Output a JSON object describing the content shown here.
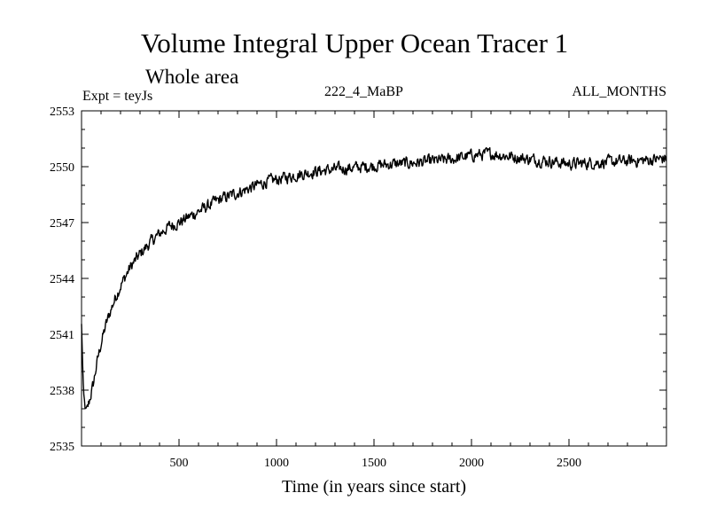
{
  "chart_data": {
    "type": "line",
    "title": "Volume Integral Upper Ocean Tracer 1",
    "subtitle": "Whole area",
    "annotations": {
      "left": "Expt = teyJs",
      "center": "222_4_MaBP",
      "right": "ALL_MONTHS"
    },
    "xlabel": "Time (in years since start)",
    "ylabel": "",
    "xlim": [
      0,
      3000
    ],
    "ylim": [
      2535,
      2553
    ],
    "x_ticks": [
      500,
      1000,
      1500,
      2000,
      2500
    ],
    "y_ticks": [
      2535,
      2538,
      2541,
      2544,
      2547,
      2550,
      2553
    ],
    "series": [
      {
        "name": "Volume Integral Upper Ocean Tracer 1",
        "x": [
          0,
          10,
          20,
          30,
          40,
          60,
          80,
          100,
          125,
          150,
          175,
          200,
          250,
          300,
          350,
          400,
          450,
          500,
          550,
          600,
          650,
          700,
          750,
          800,
          850,
          900,
          950,
          1000,
          1100,
          1200,
          1300,
          1400,
          1500,
          1600,
          1700,
          1800,
          1900,
          2000,
          2100,
          2200,
          2300,
          2400,
          2500,
          2600,
          2700,
          2800,
          2900,
          3000
        ],
        "values": [
          2541.5,
          2537.8,
          2536.9,
          2537.0,
          2537.4,
          2538.3,
          2539.5,
          2540.5,
          2541.5,
          2542.3,
          2543.0,
          2543.6,
          2544.6,
          2545.3,
          2545.9,
          2546.4,
          2546.8,
          2547.0,
          2547.3,
          2547.6,
          2547.9,
          2548.2,
          2548.4,
          2548.6,
          2548.8,
          2549.0,
          2549.2,
          2549.3,
          2549.55,
          2549.75,
          2549.85,
          2549.95,
          2550.05,
          2550.15,
          2550.2,
          2550.3,
          2550.4,
          2550.6,
          2550.7,
          2550.55,
          2550.4,
          2550.3,
          2550.15,
          2550.2,
          2550.25,
          2550.3,
          2550.35,
          2550.45
        ]
      }
    ],
    "noise_amplitude": 0.5,
    "grid": false
  }
}
